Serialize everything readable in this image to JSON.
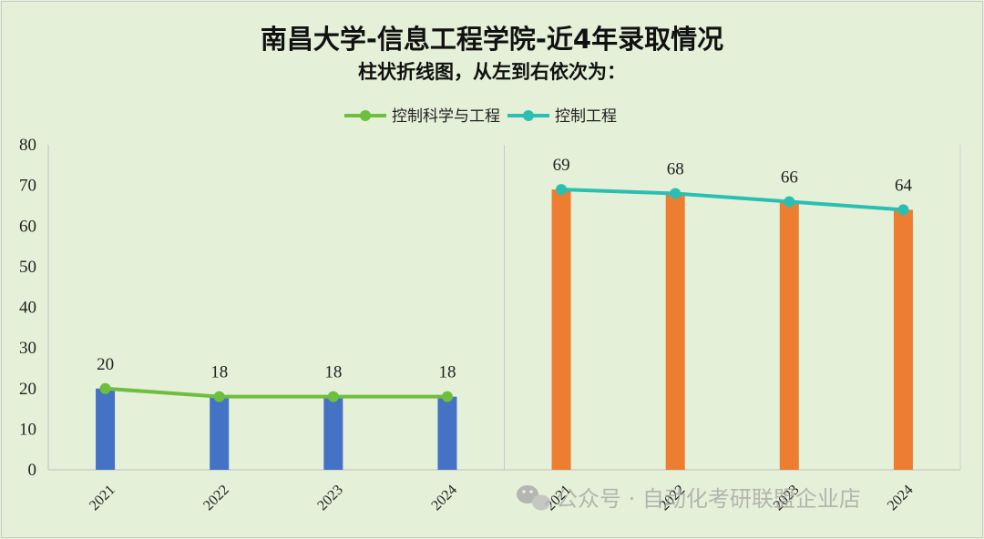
{
  "chart_data": {
    "type": "bar",
    "title": "南昌大学-信息工程学院-近4年录取情况",
    "subtitle": "柱状折线图，从左到右依次为：",
    "ylim": [
      0,
      80
    ],
    "yticks": [
      0,
      10,
      20,
      30,
      40,
      50,
      60,
      70,
      80
    ],
    "grid": false,
    "legend_position": "top-center",
    "groups": [
      {
        "name": "控制科学与工程",
        "categories": [
          "2021",
          "2022",
          "2023",
          "2024"
        ],
        "values": [
          20,
          18,
          18,
          18
        ],
        "bar_color": "#4472c4",
        "line_color": "#6fbf3f"
      },
      {
        "name": "控制工程",
        "categories": [
          "2021",
          "2022",
          "2023",
          "2024"
        ],
        "values": [
          69,
          68,
          66,
          64
        ],
        "bar_color": "#ed7d31",
        "line_color": "#2bbfb3"
      }
    ]
  },
  "watermark": {
    "text": "公众号 · 自动化考研联盟企业店",
    "icon": "wechat-icon"
  }
}
